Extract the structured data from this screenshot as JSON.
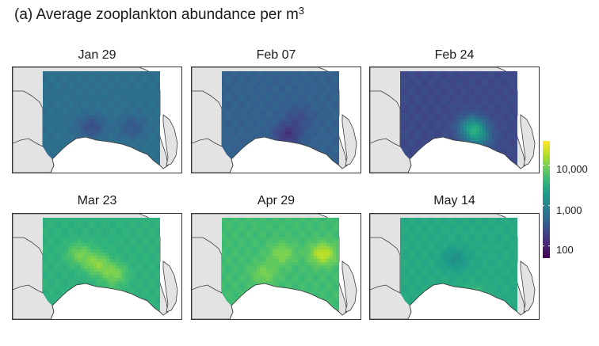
{
  "chart_data": {
    "type": "heatmap",
    "title": "(a) Average zooplankton abundance per m",
    "title_superscript": "3",
    "panels": [
      {
        "label": "Jan 29",
        "level_log10": 2.75,
        "hotspots": [
          {
            "lon": 0.4,
            "lat": 0.55,
            "delta": -0.35
          },
          {
            "lon": 0.75,
            "lat": 0.55,
            "delta": -0.25
          }
        ]
      },
      {
        "label": "Feb 07",
        "level_log10": 2.6,
        "hotspots": [
          {
            "lon": 0.55,
            "lat": 0.62,
            "delta": -0.45
          },
          {
            "lon": 0.65,
            "lat": 0.45,
            "delta": -0.2
          }
        ]
      },
      {
        "label": "Feb 24",
        "level_log10": 2.35,
        "hotspots": [
          {
            "lon": 0.6,
            "lat": 0.55,
            "delta": 0.9
          },
          {
            "lon": 0.65,
            "lat": 0.65,
            "delta": 0.6
          }
        ]
      },
      {
        "label": "Mar 23",
        "level_log10": 3.55,
        "hotspots": [
          {
            "lon": 0.45,
            "lat": 0.45,
            "delta": 0.5
          },
          {
            "lon": 0.6,
            "lat": 0.55,
            "delta": 0.45
          },
          {
            "lon": 0.3,
            "lat": 0.35,
            "delta": 0.4
          },
          {
            "lon": 0.55,
            "lat": 0.8,
            "delta": 0.3
          }
        ]
      },
      {
        "label": "Apr 29",
        "level_log10": 3.7,
        "hotspots": [
          {
            "lon": 0.85,
            "lat": 0.35,
            "delta": 0.65
          },
          {
            "lon": 0.5,
            "lat": 0.35,
            "delta": 0.35
          },
          {
            "lon": 0.35,
            "lat": 0.55,
            "delta": 0.3
          }
        ]
      },
      {
        "label": "May 14",
        "level_log10": 3.45,
        "hotspots": [
          {
            "lon": 0.45,
            "lat": 0.4,
            "delta": -0.3
          },
          {
            "lon": 0.6,
            "lat": 0.8,
            "delta": 0.35
          }
        ]
      }
    ],
    "colorbar": {
      "ticks": [
        "100",
        "1,000",
        "10,000"
      ],
      "tick_log10": [
        2,
        3,
        4
      ],
      "range_log10": [
        1.7,
        4.6
      ],
      "palette": "viridis"
    }
  }
}
